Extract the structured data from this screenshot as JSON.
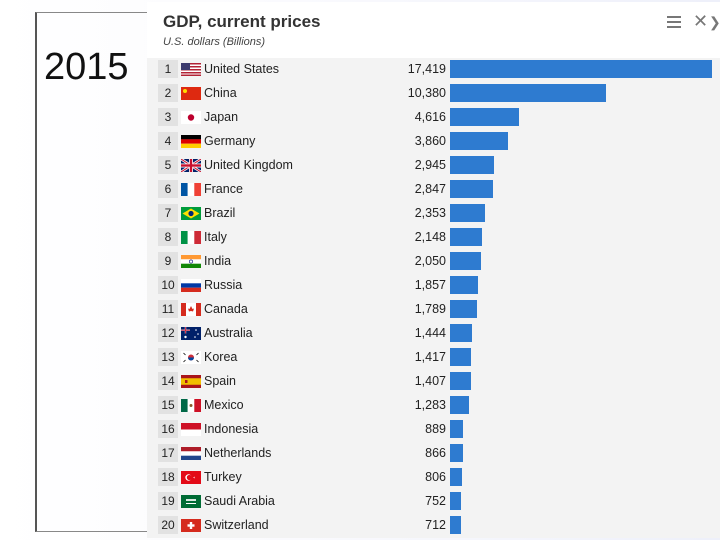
{
  "slide": {
    "year_label": "2015"
  },
  "header": {
    "title": "GDP, current prices",
    "subtitle": "U.S. dollars (Billions)",
    "icons": [
      "menu-icon",
      "close-icon",
      "chevron-icon"
    ]
  },
  "colors": {
    "bar": "#2e7bd0",
    "row_background": "#f3f3f3",
    "rank_background": "#e2e2e2"
  },
  "chart_data": {
    "type": "bar",
    "orientation": "horizontal",
    "title": "GDP, current prices",
    "subtitle": "U.S. dollars (Billions)",
    "ranks": [
      "1",
      "2",
      "3",
      "4",
      "5",
      "6",
      "7",
      "8",
      "9",
      "10",
      "11",
      "12",
      "13",
      "14",
      "15",
      "16",
      "17",
      "18",
      "19",
      "20"
    ],
    "categories": [
      "United States",
      "China",
      "Japan",
      "Germany",
      "United Kingdom",
      "France",
      "Brazil",
      "Italy",
      "India",
      "Russia",
      "Canada",
      "Australia",
      "Korea",
      "Spain",
      "Mexico",
      "Indonesia",
      "Netherlands",
      "Turkey",
      "Saudi Arabia",
      "Switzerland"
    ],
    "value_labels": [
      "17,419",
      "10,380",
      "4,616",
      "3,860",
      "2,945",
      "2,847",
      "2,353",
      "2,148",
      "2,050",
      "1,857",
      "1,789",
      "1,444",
      "1,417",
      "1,407",
      "1,283",
      "889",
      "866",
      "806",
      "752",
      "712"
    ],
    "values": [
      17419,
      10380,
      4616,
      3860,
      2945,
      2847,
      2353,
      2148,
      2050,
      1857,
      1789,
      1444,
      1417,
      1407,
      1283,
      889,
      866,
      806,
      752,
      712
    ],
    "flags": [
      "flag-us",
      "flag-cn",
      "flag-jp",
      "flag-de",
      "flag-gb",
      "flag-fr",
      "flag-br",
      "flag-it",
      "flag-in",
      "flag-ru",
      "flag-ca",
      "flag-au",
      "flag-kr",
      "flag-es",
      "flag-mx",
      "flag-id",
      "flag-nl",
      "flag-tr",
      "flag-sa",
      "flag-ch"
    ],
    "xlim": [
      0,
      17419
    ],
    "grid": false,
    "legend": "none"
  }
}
